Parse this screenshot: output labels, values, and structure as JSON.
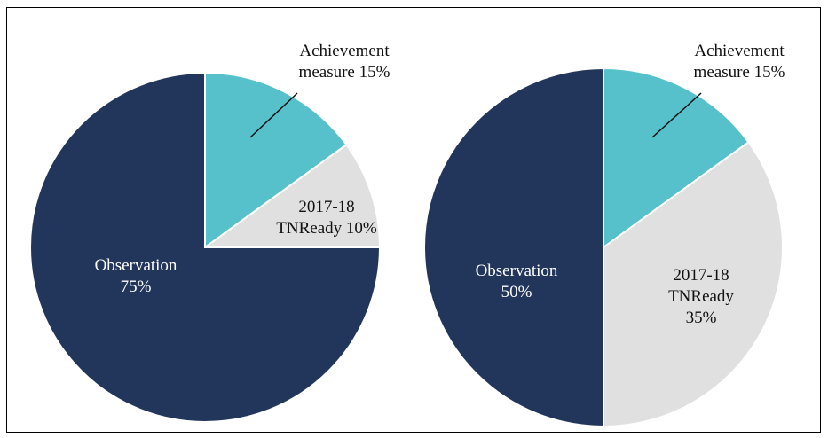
{
  "chart_data": [
    {
      "type": "pie",
      "categories": [
        "Achievement measure",
        "2017-18 TNReady",
        "Observation"
      ],
      "values": [
        15,
        10,
        75
      ],
      "value_labels": [
        "15%",
        "10%",
        "75%"
      ],
      "colors": [
        "#57c1cb",
        "#e0e0e0",
        "#22365b"
      ]
    },
    {
      "type": "pie",
      "categories": [
        "Achievement measure",
        "2017-18 TNReady",
        "Observation"
      ],
      "values": [
        15,
        35,
        50
      ],
      "value_labels": [
        "15%",
        "35%",
        "50%"
      ],
      "colors": [
        "#57c1cb",
        "#e0e0e0",
        "#22365b"
      ]
    }
  ]
}
